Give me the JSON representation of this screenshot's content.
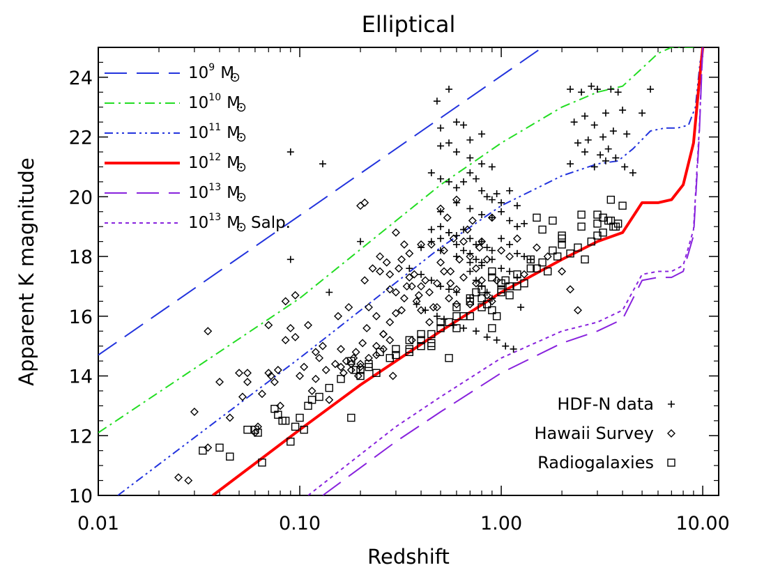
{
  "chart_data": {
    "type": "scatter",
    "title": "Elliptical",
    "xlabel": "Redshift",
    "ylabel": "Apparent K magnitude",
    "xscale": "log",
    "xlim": [
      0.01,
      12.0
    ],
    "ylim": [
      10,
      25
    ],
    "xticks": [
      {
        "value": 0.01,
        "label": "0.01"
      },
      {
        "value": 0.1,
        "label": "0.10"
      },
      {
        "value": 1.0,
        "label": "1.00"
      },
      {
        "value": 10.0,
        "label": "10.00"
      }
    ],
    "yticks": [
      {
        "value": 10,
        "label": "10"
      },
      {
        "value": 12,
        "label": "12"
      },
      {
        "value": 14,
        "label": "14"
      },
      {
        "value": 16,
        "label": "16"
      },
      {
        "value": 18,
        "label": "18"
      },
      {
        "value": 20,
        "label": "20"
      },
      {
        "value": 22,
        "label": "22"
      },
      {
        "value": 24,
        "label": "24"
      }
    ],
    "grid": false,
    "lines": [
      {
        "name": "10^9 M☉",
        "mass_base": "10",
        "mass_exp": "9",
        "mass_unit": "M",
        "color": "#2233dd",
        "style": "long-dash",
        "x": [
          0.01,
          1.6
        ],
        "y": [
          14.7,
          25.0
        ]
      },
      {
        "name": "10^10 M☉",
        "mass_base": "10",
        "mass_exp": "10",
        "mass_unit": "M",
        "color": "#22dd22",
        "style": "dash-dot",
        "x": [
          0.01,
          0.1,
          0.5,
          1.0,
          2.0,
          3.0,
          4.0,
          5.0,
          6.0,
          7.0,
          8.0,
          9.0
        ],
        "y": [
          12.1,
          16.6,
          20.4,
          21.8,
          23.0,
          23.5,
          23.7,
          24.3,
          24.8,
          25.0,
          25.0,
          25.0
        ]
      },
      {
        "name": "10^11 M☉",
        "mass_base": "10",
        "mass_exp": "11",
        "mass_unit": "M",
        "color": "#2233dd",
        "style": "dash-dot-dot",
        "x": [
          0.0125,
          0.1,
          0.5,
          1.0,
          2.0,
          3.0,
          3.8,
          4.5,
          5.5,
          6.5,
          7.5,
          8.5,
          9.2,
          9.7,
          10.0
        ],
        "y": [
          10.0,
          14.6,
          18.3,
          19.7,
          20.7,
          21.1,
          21.2,
          21.6,
          22.2,
          22.3,
          22.3,
          22.4,
          23.0,
          24.5,
          25.0
        ]
      },
      {
        "name": "10^12 M☉",
        "mass_base": "10",
        "mass_exp": "12",
        "mass_unit": "M",
        "color": "#ff0000",
        "style": "solid-thick",
        "x": [
          0.037,
          0.1,
          0.2,
          0.5,
          1.0,
          2.0,
          3.0,
          4.0,
          5.0,
          6.0,
          7.0,
          8.0,
          9.0,
          9.5,
          10.0
        ],
        "y": [
          10.0,
          12.2,
          13.7,
          15.5,
          16.8,
          17.9,
          18.5,
          18.8,
          19.8,
          19.8,
          19.9,
          20.4,
          21.8,
          23.5,
          25.0
        ]
      },
      {
        "name": "10^13 M☉",
        "mass_base": "10",
        "mass_exp": "13",
        "mass_unit": "M",
        "color": "#8822dd",
        "style": "long-dash",
        "x": [
          0.13,
          0.3,
          0.5,
          1.0,
          2.0,
          3.0,
          4.0,
          5.0,
          6.0,
          7.0,
          8.0,
          9.0,
          9.6,
          10.0
        ],
        "y": [
          10.0,
          11.8,
          12.8,
          14.1,
          15.1,
          15.5,
          15.9,
          17.2,
          17.3,
          17.3,
          17.5,
          18.7,
          22.0,
          25.0
        ]
      },
      {
        "name": "10^13 M☉ Salp.",
        "mass_base": "10",
        "mass_exp": "13",
        "mass_unit": "M",
        "suffix": "Salp.",
        "color": "#8822dd",
        "style": "short-dash",
        "x": [
          0.11,
          0.3,
          0.5,
          1.0,
          2.0,
          3.0,
          4.0,
          5.0,
          6.0,
          7.0,
          8.0,
          9.0,
          9.6,
          10.0
        ],
        "y": [
          10.0,
          12.3,
          13.3,
          14.6,
          15.5,
          15.8,
          16.2,
          17.4,
          17.5,
          17.5,
          17.7,
          18.9,
          22.2,
          25.0
        ]
      }
    ],
    "series": [
      {
        "name": "HDF-N data",
        "marker": "plus",
        "x": [
          0.09,
          0.13,
          0.14,
          0.09,
          0.2,
          0.48,
          0.5,
          0.55,
          0.6,
          0.65,
          0.7,
          0.8,
          0.55,
          0.5,
          0.6,
          0.7,
          0.8,
          0.9,
          0.45,
          0.5,
          0.55,
          0.6,
          0.65,
          0.7,
          0.75,
          0.8,
          0.85,
          0.9,
          0.95,
          1.0,
          1.1,
          1.2,
          0.5,
          0.6,
          0.7,
          0.8,
          0.9,
          1.0,
          1.1,
          1.2,
          1.3,
          0.45,
          0.5,
          0.55,
          0.6,
          0.65,
          0.7,
          0.75,
          0.8,
          0.85,
          0.9,
          1.0,
          1.1,
          1.2,
          1.3,
          1.4,
          0.5,
          0.6,
          0.7,
          0.8,
          0.9,
          1.0,
          1.1,
          1.2,
          2.2,
          2.5,
          2.8,
          3.0,
          3.3,
          3.5,
          3.8,
          4.0,
          2.3,
          2.6,
          2.9,
          3.2,
          3.6,
          4.2,
          5.0,
          5.5,
          2.4,
          2.7,
          3.1,
          3.4,
          3.7,
          4.1,
          4.5,
          2.2,
          2.6,
          2.9,
          3.3,
          0.4,
          0.45,
          0.5,
          0.55,
          0.6,
          0.65,
          0.7,
          0.75,
          0.8,
          0.35,
          0.4,
          0.45,
          0.5,
          0.55,
          0.6,
          0.7,
          0.38,
          0.42,
          0.48,
          0.52,
          0.58,
          0.65,
          0.75,
          0.85,
          0.95,
          1.05,
          1.15,
          0.7,
          0.75,
          0.8,
          0.85,
          0.9,
          1.25
        ],
        "y": [
          21.5,
          21.1,
          16.8,
          17.9,
          18.5,
          23.2,
          22.3,
          23.6,
          22.5,
          22.4,
          21.9,
          22.1,
          21.8,
          21.7,
          21.5,
          21.3,
          21.1,
          21.0,
          20.8,
          20.6,
          20.5,
          20.3,
          20.5,
          20.8,
          20.6,
          20.2,
          20.0,
          19.9,
          20.1,
          19.8,
          20.2,
          19.7,
          19.5,
          19.8,
          19.6,
          19.4,
          19.3,
          19.5,
          19.2,
          19.0,
          19.1,
          18.9,
          19.0,
          18.8,
          18.7,
          18.9,
          18.6,
          18.4,
          18.5,
          18.3,
          18.2,
          18.6,
          18.4,
          18.1,
          18.0,
          17.9,
          18.2,
          18.0,
          17.8,
          17.7,
          17.9,
          17.6,
          17.5,
          17.3,
          23.6,
          23.5,
          23.7,
          23.6,
          22.8,
          23.6,
          23.5,
          22.9,
          22.5,
          22.7,
          22.4,
          22.0,
          22.2,
          22.1,
          22.8,
          23.6,
          21.8,
          21.9,
          21.4,
          21.6,
          21.3,
          21.0,
          20.8,
          21.1,
          21.5,
          21.0,
          21.2,
          18.3,
          18.5,
          18.6,
          18.8,
          18.4,
          18.2,
          18.1,
          17.9,
          17.8,
          17.6,
          17.4,
          17.2,
          17.0,
          16.9,
          16.8,
          16.6,
          16.4,
          16.2,
          16.0,
          15.9,
          15.7,
          15.6,
          15.5,
          15.3,
          15.2,
          15.0,
          14.9,
          17.5,
          17.2,
          17.0,
          16.8,
          16.6,
          16.3
        ]
      },
      {
        "name": "Hawaii Survey",
        "marker": "diamond",
        "x": [
          0.025,
          0.028,
          0.03,
          0.035,
          0.04,
          0.05,
          0.052,
          0.055,
          0.06,
          0.062,
          0.065,
          0.07,
          0.072,
          0.075,
          0.078,
          0.08,
          0.085,
          0.09,
          0.095,
          0.1,
          0.105,
          0.11,
          0.115,
          0.12,
          0.125,
          0.13,
          0.135,
          0.14,
          0.15,
          0.155,
          0.16,
          0.165,
          0.17,
          0.175,
          0.18,
          0.185,
          0.19,
          0.195,
          0.2,
          0.205,
          0.21,
          0.215,
          0.22,
          0.23,
          0.24,
          0.25,
          0.26,
          0.27,
          0.28,
          0.29,
          0.3,
          0.31,
          0.32,
          0.33,
          0.34,
          0.35,
          0.36,
          0.37,
          0.38,
          0.39,
          0.4,
          0.42,
          0.44,
          0.46,
          0.48,
          0.5,
          0.52,
          0.54,
          0.56,
          0.58,
          0.6,
          0.62,
          0.65,
          0.68,
          0.7,
          0.72,
          0.75,
          0.78,
          0.8,
          0.85,
          0.9,
          0.95,
          1.0,
          1.1,
          1.2,
          1.3,
          1.5,
          1.7,
          2.0,
          2.2,
          2.4,
          0.2,
          0.21,
          0.25,
          0.28,
          0.3,
          0.32,
          0.35,
          0.4,
          0.45,
          0.5,
          0.55,
          0.6,
          0.65,
          0.7,
          0.75,
          0.8,
          0.85,
          0.9,
          0.2,
          0.22,
          0.24,
          0.26,
          0.28,
          0.3,
          0.33,
          0.36,
          0.4,
          0.44,
          0.48,
          0.52,
          0.56,
          0.6,
          0.035,
          0.045,
          0.055,
          0.07,
          0.085,
          0.095,
          0.12,
          0.16,
          0.18,
          0.24,
          0.26,
          0.28
        ],
        "y": [
          10.6,
          10.5,
          12.8,
          15.5,
          13.8,
          14.1,
          13.3,
          13.8,
          12.1,
          12.3,
          13.4,
          14.1,
          14.0,
          13.8,
          14.2,
          13.0,
          15.2,
          15.6,
          16.7,
          14.0,
          14.3,
          15.7,
          13.5,
          13.9,
          14.6,
          15.0,
          14.2,
          13.2,
          14.4,
          16.0,
          14.3,
          14.1,
          14.5,
          16.3,
          14.2,
          14.6,
          14.8,
          14.0,
          14.4,
          15.1,
          17.2,
          15.6,
          16.3,
          17.6,
          16.0,
          17.5,
          15.4,
          17.8,
          16.9,
          14.0,
          18.8,
          17.6,
          16.2,
          18.4,
          17.0,
          18.1,
          15.2,
          17.4,
          16.5,
          16.7,
          18.4,
          17.2,
          16.8,
          16.3,
          17.1,
          19.6,
          18.2,
          19.3,
          17.5,
          18.6,
          19.9,
          17.9,
          18.5,
          18.9,
          18.0,
          19.2,
          17.6,
          18.3,
          18.5,
          17.9,
          19.3,
          17.2,
          18.2,
          18.0,
          18.6,
          17.4,
          18.3,
          18.0,
          17.5,
          16.9,
          16.2,
          19.7,
          19.8,
          18.0,
          17.4,
          16.8,
          17.9,
          17.3,
          17.0,
          18.4,
          17.8,
          16.6,
          16.9,
          17.3,
          16.4,
          17.1,
          17.2,
          16.7,
          16.5,
          14.3,
          14.6,
          15.0,
          15.4,
          15.8,
          16.1,
          16.6,
          17.0,
          16.2,
          15.8,
          16.3,
          17.5,
          17.1,
          16.4,
          11.6,
          12.6,
          14.1,
          15.7,
          16.5,
          15.3,
          14.8,
          14.9,
          14.4,
          14.7,
          14.9,
          15.2
        ]
      },
      {
        "name": "Radiogalaxies",
        "marker": "square",
        "x": [
          0.033,
          0.04,
          0.045,
          0.055,
          0.06,
          0.062,
          0.065,
          0.075,
          0.078,
          0.082,
          0.085,
          0.09,
          0.095,
          0.1,
          0.105,
          0.11,
          0.115,
          0.125,
          0.14,
          0.16,
          0.18,
          0.19,
          0.2,
          0.22,
          0.25,
          0.28,
          0.3,
          0.35,
          0.4,
          0.45,
          0.5,
          0.55,
          0.6,
          0.65,
          0.7,
          0.75,
          0.8,
          0.85,
          0.9,
          0.95,
          1.0,
          1.05,
          1.1,
          1.2,
          1.3,
          1.4,
          1.5,
          1.6,
          1.7,
          1.8,
          1.9,
          2.0,
          2.2,
          2.4,
          2.6,
          2.8,
          3.0,
          3.2,
          3.4,
          3.6,
          3.8,
          0.2,
          0.22,
          0.24,
          0.3,
          0.35,
          0.4,
          0.45,
          0.55,
          0.6,
          0.7,
          0.8,
          0.9,
          1.0,
          1.2,
          1.4,
          1.6,
          1.8,
          2.0,
          2.5,
          3.0,
          3.5,
          0.5,
          0.6,
          0.7,
          0.8,
          0.9,
          1.0,
          1.1,
          0.35,
          0.4,
          0.45,
          0.18,
          0.9,
          1.5,
          2.0,
          2.5,
          3.0,
          3.2,
          3.5,
          3.7,
          4.0
        ],
        "y": [
          11.5,
          11.6,
          11.3,
          12.2,
          12.2,
          12.1,
          11.1,
          12.9,
          12.7,
          12.5,
          12.5,
          11.8,
          12.3,
          12.6,
          12.2,
          13.0,
          13.2,
          13.3,
          13.6,
          13.9,
          12.6,
          14.2,
          14.0,
          14.3,
          14.8,
          14.6,
          14.9,
          15.2,
          15.4,
          15.0,
          15.6,
          15.8,
          16.3,
          16.0,
          16.5,
          16.8,
          16.6,
          16.4,
          16.2,
          16.0,
          16.9,
          17.2,
          17.0,
          17.4,
          17.1,
          17.9,
          17.6,
          17.8,
          17.5,
          18.2,
          18.0,
          18.4,
          18.1,
          18.3,
          17.9,
          18.5,
          18.7,
          18.8,
          19.2,
          19.0,
          19.1,
          14.2,
          14.4,
          14.1,
          14.7,
          14.9,
          15.2,
          15.4,
          14.6,
          15.6,
          16.0,
          16.3,
          15.6,
          16.8,
          17.0,
          17.6,
          18.9,
          19.2,
          18.7,
          19.4,
          19.4,
          19.9,
          15.8,
          16.0,
          16.6,
          16.9,
          17.3,
          17.1,
          16.7,
          14.8,
          15.0,
          15.1,
          14.5,
          17.5,
          19.3,
          18.6,
          19.0,
          19.1,
          19.3,
          19.2,
          19.0,
          19.7
        ]
      }
    ],
    "annotations": [
      {
        "text": "HDF-N data",
        "marker": "plus"
      },
      {
        "text": "Hawaii Survey",
        "marker": "diamond"
      },
      {
        "text": "Radiogalaxies",
        "marker": "square"
      }
    ]
  }
}
